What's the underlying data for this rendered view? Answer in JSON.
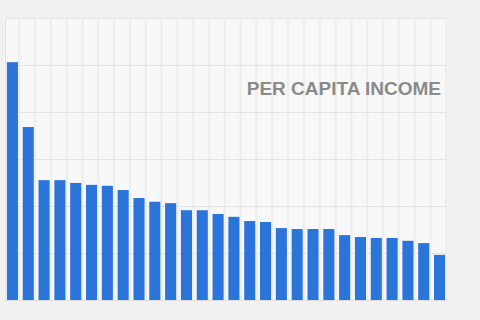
{
  "chart_data": {
    "type": "bar",
    "title": "PER CAPITA INCOME",
    "categories": [
      null,
      null,
      null,
      null,
      null,
      null,
      null,
      null,
      null,
      null,
      null,
      null,
      null,
      null,
      null,
      null,
      null,
      null,
      null,
      null,
      null,
      null,
      null,
      null,
      null,
      null,
      null,
      null
    ],
    "values": [
      5.06,
      3.68,
      2.55,
      2.55,
      2.49,
      2.45,
      2.43,
      2.34,
      2.17,
      2.09,
      2.06,
      1.91,
      1.91,
      1.83,
      1.77,
      1.68,
      1.66,
      1.53,
      1.51,
      1.51,
      1.51,
      1.38,
      1.34,
      1.32,
      1.32,
      1.26,
      1.21,
      0.96
    ],
    "color": "#2b74d9",
    "ylim": [
      0,
      6
    ],
    "yticks": [
      0,
      1,
      2,
      3,
      4,
      5,
      6
    ],
    "grid": true,
    "tick_labels": false
  }
}
